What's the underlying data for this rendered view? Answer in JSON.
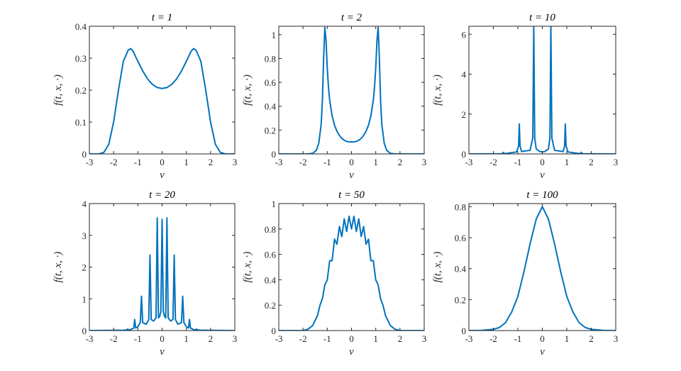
{
  "figure": {
    "line_color": "#0072BD"
  },
  "chart_data": [
    {
      "type": "line",
      "title": "t = 1",
      "xlabel": "v",
      "ylabel": "f(t, x, ·)",
      "xlim": [
        -3,
        3
      ],
      "ylim": [
        0,
        0.4
      ],
      "xticks": [
        "-3",
        "-2",
        "-1",
        "0",
        "1",
        "2",
        "3"
      ],
      "yticks": [
        "0",
        "0.1",
        "0.2",
        "0.3",
        "0.4"
      ],
      "series": [
        {
          "x": [
            -3,
            -2.6,
            -2.4,
            -2.2,
            -2.0,
            -1.8,
            -1.6,
            -1.4,
            -1.3,
            -1.2,
            -1.0,
            -0.8,
            -0.6,
            -0.4,
            -0.2,
            0,
            0.2,
            0.4,
            0.6,
            0.8,
            1.0,
            1.2,
            1.3,
            1.4,
            1.6,
            1.8,
            2.0,
            2.2,
            2.4,
            2.6,
            3
          ],
          "y": [
            0,
            0.0,
            0.005,
            0.03,
            0.1,
            0.2,
            0.29,
            0.325,
            0.33,
            0.322,
            0.29,
            0.26,
            0.235,
            0.218,
            0.208,
            0.205,
            0.208,
            0.218,
            0.235,
            0.26,
            0.29,
            0.322,
            0.33,
            0.325,
            0.29,
            0.2,
            0.1,
            0.03,
            0.005,
            0.0,
            0
          ]
        }
      ]
    },
    {
      "type": "line",
      "title": "t = 2",
      "xlabel": "v",
      "ylabel": "f(t, x, ·)",
      "xlim": [
        -3,
        3
      ],
      "ylim": [
        0,
        1.07
      ],
      "xticks": [
        "-3",
        "-2",
        "-1",
        "0",
        "1",
        "2",
        "3"
      ],
      "yticks": [
        "0",
        "0.2",
        "0.4",
        "0.6",
        "0.8",
        "1"
      ],
      "series": [
        {
          "x": [
            -3,
            -1.8,
            -1.6,
            -1.45,
            -1.35,
            -1.25,
            -1.2,
            -1.15,
            -1.1,
            -1.05,
            -1.0,
            -0.95,
            -0.9,
            -0.8,
            -0.7,
            -0.6,
            -0.5,
            -0.4,
            -0.3,
            -0.2,
            -0.1,
            0,
            0.1,
            0.2,
            0.3,
            0.4,
            0.5,
            0.6,
            0.7,
            0.8,
            0.9,
            0.95,
            1.0,
            1.05,
            1.1,
            1.15,
            1.2,
            1.25,
            1.35,
            1.45,
            1.6,
            1.8,
            3
          ],
          "y": [
            0,
            0,
            0.005,
            0.03,
            0.09,
            0.25,
            0.45,
            0.8,
            1.06,
            0.95,
            0.72,
            0.56,
            0.45,
            0.32,
            0.24,
            0.19,
            0.155,
            0.13,
            0.115,
            0.105,
            0.1,
            0.1,
            0.1,
            0.105,
            0.115,
            0.13,
            0.155,
            0.19,
            0.24,
            0.32,
            0.45,
            0.56,
            0.72,
            0.95,
            1.06,
            0.8,
            0.45,
            0.25,
            0.09,
            0.03,
            0.005,
            0,
            0
          ]
        }
      ]
    },
    {
      "type": "line",
      "title": "t = 10",
      "xlabel": "v",
      "ylabel": "f(t, x, ·)",
      "xlim": [
        -3,
        3
      ],
      "ylim": [
        0,
        6.4
      ],
      "xticks": [
        "-3",
        "-2",
        "-1",
        "0",
        "1",
        "2",
        "3"
      ],
      "yticks": [
        "0",
        "2",
        "4",
        "6"
      ],
      "series": [
        {
          "x": [
            -3,
            -1.7,
            -1.62,
            -1.59,
            -1.56,
            -1.5,
            -1.05,
            -0.97,
            -0.94,
            -0.91,
            -0.85,
            -0.5,
            -0.39,
            -0.35,
            -0.31,
            -0.25,
            -0.1,
            0,
            0.1,
            0.25,
            0.31,
            0.35,
            0.39,
            0.5,
            0.85,
            0.91,
            0.94,
            0.97,
            1.05,
            1.5,
            1.56,
            1.59,
            1.62,
            1.7,
            3
          ],
          "y": [
            0,
            0.01,
            0.02,
            0.08,
            0.02,
            0.02,
            0.1,
            0.4,
            1.5,
            0.4,
            0.12,
            0.18,
            0.8,
            6.4,
            0.8,
            0.25,
            0.12,
            0.1,
            0.12,
            0.25,
            0.8,
            6.4,
            0.8,
            0.18,
            0.12,
            0.4,
            1.5,
            0.4,
            0.1,
            0.02,
            0.02,
            0.08,
            0.02,
            0.01,
            0
          ]
        }
      ]
    },
    {
      "type": "line",
      "title": "t = 20",
      "xlabel": "v",
      "ylabel": "f(t, x, ·)",
      "xlim": [
        -3,
        3
      ],
      "ylim": [
        0,
        4
      ],
      "xticks": [
        "-3",
        "-2",
        "-1",
        "0",
        "1",
        "2",
        "3"
      ],
      "yticks": [
        "0",
        "1",
        "2",
        "3",
        "4"
      ],
      "series": [
        {
          "x": [
            -3,
            -1.6,
            -1.45,
            -1.42,
            -1.39,
            -1.3,
            -1.17,
            -1.13,
            -1.09,
            -1.0,
            -0.9,
            -0.85,
            -0.8,
            -0.65,
            -0.55,
            -0.5,
            -0.45,
            -0.35,
            -0.25,
            -0.2,
            -0.15,
            -0.1,
            -0.05,
            0,
            0.05,
            0.1,
            0.15,
            0.2,
            0.25,
            0.35,
            0.45,
            0.5,
            0.55,
            0.65,
            0.8,
            0.85,
            0.9,
            1.0,
            1.09,
            1.13,
            1.17,
            1.3,
            1.39,
            1.42,
            1.45,
            1.6,
            3
          ],
          "y": [
            0,
            0.01,
            0.02,
            0.05,
            0.02,
            0.03,
            0.08,
            0.35,
            0.08,
            0.12,
            0.25,
            1.08,
            0.25,
            0.2,
            0.35,
            2.38,
            0.35,
            0.3,
            0.4,
            3.55,
            0.4,
            0.45,
            0.6,
            3.5,
            0.6,
            0.45,
            0.4,
            3.55,
            0.4,
            0.3,
            0.35,
            2.38,
            0.35,
            0.2,
            0.25,
            1.08,
            0.25,
            0.12,
            0.08,
            0.35,
            0.08,
            0.03,
            0.02,
            0.05,
            0.02,
            0.01,
            0
          ]
        }
      ]
    },
    {
      "type": "line",
      "title": "t = 50",
      "xlabel": "v",
      "ylabel": "f(t, x, ·)",
      "xlim": [
        -3,
        3
      ],
      "ylim": [
        0,
        1
      ],
      "xticks": [
        "-3",
        "-2",
        "-1",
        "0",
        "1",
        "2",
        "3"
      ],
      "yticks": [
        "0",
        "0.2",
        "0.4",
        "0.6",
        "0.8",
        "1"
      ],
      "series": [
        {
          "x": [
            -3,
            -2.0,
            -1.8,
            -1.6,
            -1.5,
            -1.4,
            -1.3,
            -1.2,
            -1.1,
            -1.0,
            -0.9,
            -0.8,
            -0.7,
            -0.6,
            -0.5,
            -0.4,
            -0.3,
            -0.2,
            -0.1,
            0,
            0.1,
            0.2,
            0.3,
            0.4,
            0.5,
            0.6,
            0.7,
            0.8,
            0.9,
            1.0,
            1.1,
            1.2,
            1.3,
            1.4,
            1.5,
            1.6,
            1.8,
            2.0,
            3
          ],
          "y": [
            0,
            0.0,
            0.01,
            0.04,
            0.08,
            0.12,
            0.2,
            0.25,
            0.36,
            0.4,
            0.55,
            0.55,
            0.72,
            0.68,
            0.82,
            0.74,
            0.88,
            0.78,
            0.9,
            0.8,
            0.9,
            0.78,
            0.88,
            0.74,
            0.82,
            0.68,
            0.72,
            0.55,
            0.55,
            0.4,
            0.36,
            0.25,
            0.2,
            0.12,
            0.08,
            0.04,
            0.01,
            0.0,
            0
          ]
        }
      ]
    },
    {
      "type": "line",
      "title": "t = 100",
      "xlabel": "v",
      "ylabel": "f(t, x, ·)",
      "xlim": [
        -3,
        3
      ],
      "ylim": [
        0,
        0.82
      ],
      "xticks": [
        "-3",
        "-2",
        "-1",
        "0",
        "1",
        "2",
        "3"
      ],
      "yticks": [
        "0",
        "0.2",
        "0.4",
        "0.6",
        "0.8"
      ],
      "series": [
        {
          "x": [
            -3,
            -2.5,
            -2.0,
            -1.75,
            -1.5,
            -1.25,
            -1.0,
            -0.75,
            -0.5,
            -0.25,
            0,
            0.25,
            0.5,
            0.75,
            1.0,
            1.25,
            1.5,
            1.75,
            2.0,
            2.5,
            3
          ],
          "y": [
            0,
            0.001,
            0.008,
            0.02,
            0.052,
            0.12,
            0.22,
            0.38,
            0.56,
            0.72,
            0.8,
            0.72,
            0.56,
            0.38,
            0.22,
            0.12,
            0.052,
            0.02,
            0.008,
            0.001,
            0
          ]
        }
      ]
    }
  ]
}
